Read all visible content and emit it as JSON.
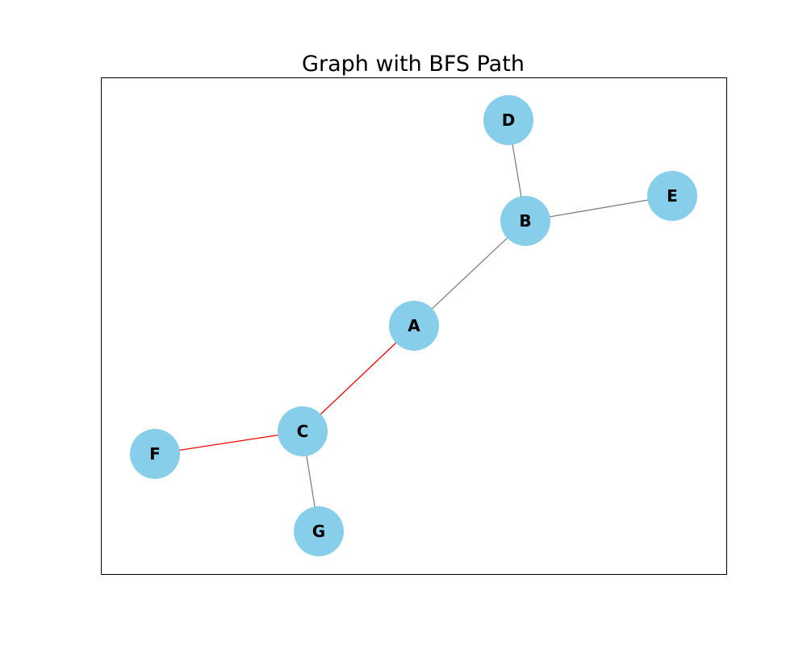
{
  "title": "Graph with BFS Path",
  "colors": {
    "node_fill": "#87ceeb",
    "edge_default": "#808080",
    "edge_path": "#ff0000",
    "frame": "#000000"
  },
  "nodes": [
    {
      "id": "A",
      "label": "A"
    },
    {
      "id": "B",
      "label": "B"
    },
    {
      "id": "C",
      "label": "C"
    },
    {
      "id": "D",
      "label": "D"
    },
    {
      "id": "E",
      "label": "E"
    },
    {
      "id": "F",
      "label": "F"
    },
    {
      "id": "G",
      "label": "G"
    }
  ],
  "edges": [
    {
      "from": "A",
      "to": "B",
      "on_path": false
    },
    {
      "from": "A",
      "to": "C",
      "on_path": true
    },
    {
      "from": "B",
      "to": "D",
      "on_path": false
    },
    {
      "from": "B",
      "to": "E",
      "on_path": false
    },
    {
      "from": "C",
      "to": "F",
      "on_path": true
    },
    {
      "from": "C",
      "to": "G",
      "on_path": false
    }
  ]
}
